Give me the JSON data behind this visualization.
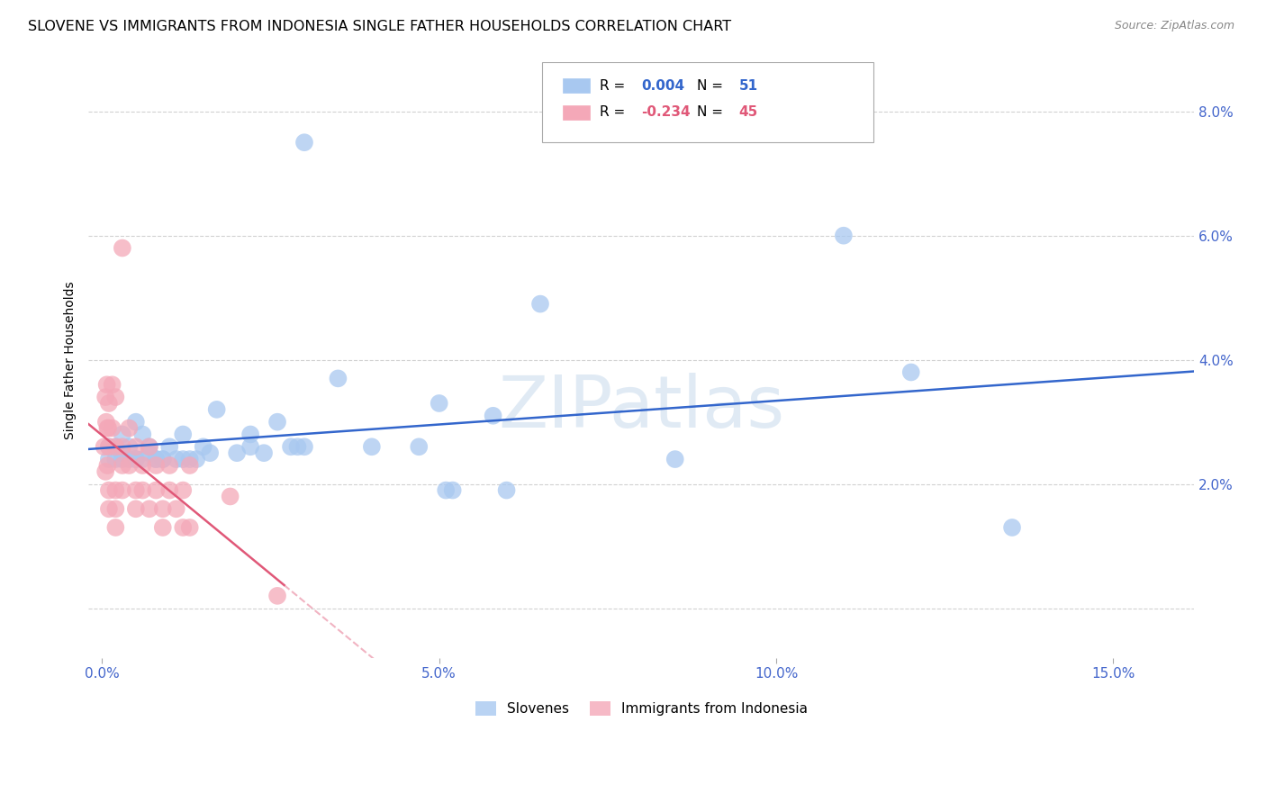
{
  "title": "SLOVENE VS IMMIGRANTS FROM INDONESIA SINGLE FATHER HOUSEHOLDS CORRELATION CHART",
  "source": "Source: ZipAtlas.com",
  "xlabel_ticks": [
    0.0,
    0.05,
    0.1,
    0.15
  ],
  "xlabel_labels": [
    "0.0%",
    "5.0%",
    "10.0%",
    "15.0%"
  ],
  "ylabel_right_ticks": [
    0.0,
    0.02,
    0.04,
    0.06,
    0.08
  ],
  "ylabel_right_labels": [
    "",
    "2.0%",
    "4.0%",
    "6.0%",
    "8.0%"
  ],
  "xlim": [
    -0.002,
    0.162
  ],
  "ylim": [
    -0.008,
    0.088
  ],
  "ylabel": "Single Father Households",
  "blue_R": "0.004",
  "blue_N": "51",
  "pink_R": "-0.234",
  "pink_N": "45",
  "blue_color": "#A8C8F0",
  "pink_color": "#F4A8B8",
  "blue_line_color": "#3366CC",
  "pink_line_color": "#E05878",
  "legend_labels": [
    "Slovenes",
    "Immigrants from Indonesia"
  ],
  "blue_scatter": [
    [
      0.001,
      0.026
    ],
    [
      0.001,
      0.024
    ],
    [
      0.002,
      0.026
    ],
    [
      0.002,
      0.024
    ],
    [
      0.003,
      0.028
    ],
    [
      0.003,
      0.024
    ],
    [
      0.003,
      0.025
    ],
    [
      0.004,
      0.024
    ],
    [
      0.004,
      0.026
    ],
    [
      0.005,
      0.03
    ],
    [
      0.005,
      0.024
    ],
    [
      0.005,
      0.024
    ],
    [
      0.006,
      0.028
    ],
    [
      0.006,
      0.024
    ],
    [
      0.007,
      0.026
    ],
    [
      0.007,
      0.025
    ],
    [
      0.008,
      0.024
    ],
    [
      0.008,
      0.024
    ],
    [
      0.009,
      0.024
    ],
    [
      0.009,
      0.024
    ],
    [
      0.01,
      0.026
    ],
    [
      0.011,
      0.024
    ],
    [
      0.012,
      0.028
    ],
    [
      0.012,
      0.024
    ],
    [
      0.013,
      0.024
    ],
    [
      0.014,
      0.024
    ],
    [
      0.015,
      0.026
    ],
    [
      0.016,
      0.025
    ],
    [
      0.017,
      0.032
    ],
    [
      0.02,
      0.025
    ],
    [
      0.022,
      0.028
    ],
    [
      0.022,
      0.026
    ],
    [
      0.024,
      0.025
    ],
    [
      0.026,
      0.03
    ],
    [
      0.028,
      0.026
    ],
    [
      0.029,
      0.026
    ],
    [
      0.03,
      0.026
    ],
    [
      0.03,
      0.075
    ],
    [
      0.035,
      0.037
    ],
    [
      0.04,
      0.026
    ],
    [
      0.047,
      0.026
    ],
    [
      0.05,
      0.033
    ],
    [
      0.051,
      0.019
    ],
    [
      0.052,
      0.019
    ],
    [
      0.058,
      0.031
    ],
    [
      0.06,
      0.019
    ],
    [
      0.065,
      0.049
    ],
    [
      0.085,
      0.024
    ],
    [
      0.11,
      0.06
    ],
    [
      0.12,
      0.038
    ],
    [
      0.135,
      0.013
    ]
  ],
  "pink_scatter": [
    [
      0.0003,
      0.026
    ],
    [
      0.0005,
      0.034
    ],
    [
      0.0005,
      0.022
    ],
    [
      0.0006,
      0.03
    ],
    [
      0.0007,
      0.036
    ],
    [
      0.0008,
      0.029
    ],
    [
      0.0008,
      0.023
    ],
    [
      0.0009,
      0.029
    ],
    [
      0.001,
      0.033
    ],
    [
      0.001,
      0.026
    ],
    [
      0.001,
      0.019
    ],
    [
      0.001,
      0.016
    ],
    [
      0.0015,
      0.036
    ],
    [
      0.0015,
      0.029
    ],
    [
      0.002,
      0.034
    ],
    [
      0.002,
      0.026
    ],
    [
      0.002,
      0.019
    ],
    [
      0.002,
      0.016
    ],
    [
      0.002,
      0.013
    ],
    [
      0.003,
      0.026
    ],
    [
      0.003,
      0.023
    ],
    [
      0.003,
      0.019
    ],
    [
      0.003,
      0.058
    ],
    [
      0.004,
      0.029
    ],
    [
      0.004,
      0.023
    ],
    [
      0.005,
      0.026
    ],
    [
      0.005,
      0.019
    ],
    [
      0.005,
      0.016
    ],
    [
      0.006,
      0.023
    ],
    [
      0.006,
      0.019
    ],
    [
      0.007,
      0.026
    ],
    [
      0.007,
      0.016
    ],
    [
      0.008,
      0.023
    ],
    [
      0.008,
      0.019
    ],
    [
      0.009,
      0.016
    ],
    [
      0.009,
      0.013
    ],
    [
      0.01,
      0.023
    ],
    [
      0.01,
      0.019
    ],
    [
      0.011,
      0.016
    ],
    [
      0.012,
      0.019
    ],
    [
      0.012,
      0.013
    ],
    [
      0.013,
      0.023
    ],
    [
      0.013,
      0.013
    ],
    [
      0.019,
      0.018
    ],
    [
      0.026,
      0.002
    ]
  ],
  "watermark": "ZIPatlas",
  "title_fontsize": 11.5,
  "axis_label_fontsize": 10,
  "tick_fontsize": 11,
  "tick_color": "#4466CC"
}
